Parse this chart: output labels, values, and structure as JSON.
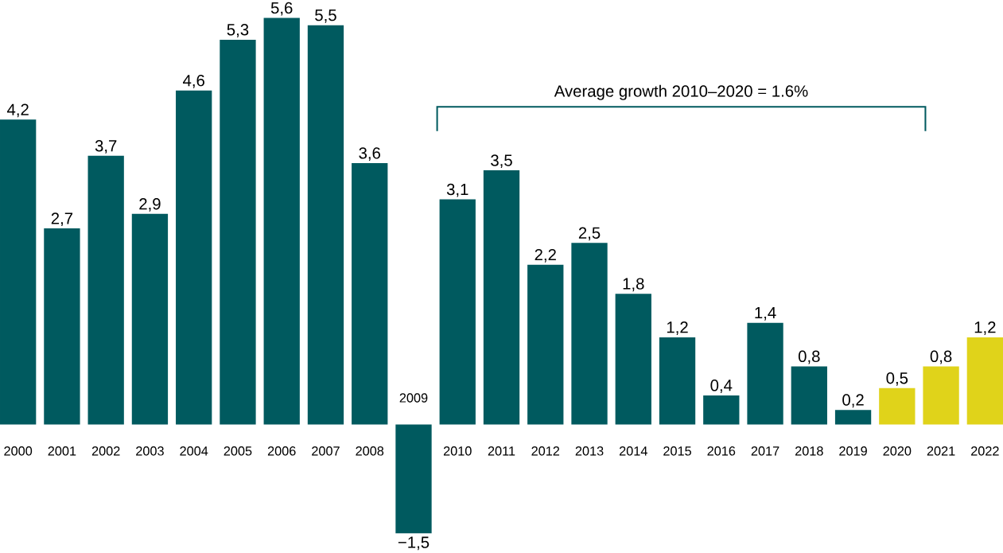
{
  "chart_data": {
    "type": "bar",
    "categories": [
      "2000",
      "2001",
      "2002",
      "2003",
      "2004",
      "2005",
      "2006",
      "2007",
      "2008",
      "2009",
      "2010",
      "2011",
      "2012",
      "2013",
      "2014",
      "2015",
      "2016",
      "2017",
      "2018",
      "2019",
      "2020",
      "2021",
      "2022"
    ],
    "values": [
      4.2,
      2.7,
      3.7,
      2.9,
      4.6,
      5.3,
      5.6,
      5.5,
      3.6,
      -1.5,
      3.1,
      3.5,
      2.2,
      2.5,
      1.8,
      1.2,
      0.4,
      1.4,
      0.8,
      0.2,
      0.5,
      0.8,
      1.2
    ],
    "value_labels": [
      "4,2",
      "2,7",
      "3,7",
      "2,9",
      "4,6",
      "5,3",
      "5,6",
      "5,5",
      "3,6",
      "−1,5",
      "3,1",
      "3,5",
      "2,2",
      "2,5",
      "1,8",
      "1,2",
      "0,4",
      "1,4",
      "0,8",
      "0,2",
      "0,5",
      "0,8",
      "1,2"
    ],
    "colors": [
      "#005a5f",
      "#005a5f",
      "#005a5f",
      "#005a5f",
      "#005a5f",
      "#005a5f",
      "#005a5f",
      "#005a5f",
      "#005a5f",
      "#005a5f",
      "#005a5f",
      "#005a5f",
      "#005a5f",
      "#005a5f",
      "#005a5f",
      "#005a5f",
      "#005a5f",
      "#005a5f",
      "#005a5f",
      "#005a5f",
      "#e0d31a",
      "#e0d31a",
      "#e0d31a"
    ],
    "annotations": [
      "Average growth 2010–2020 = 1.6%"
    ]
  }
}
